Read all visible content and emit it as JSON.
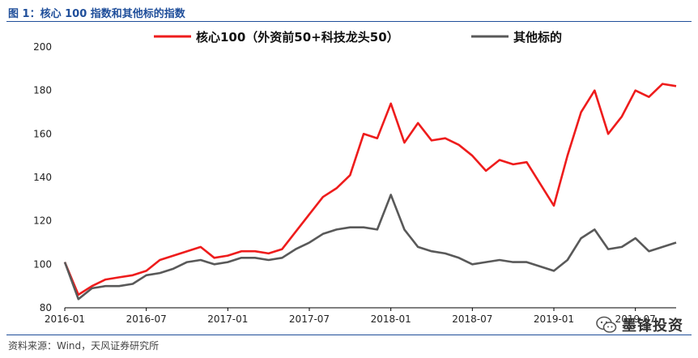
{
  "figure_title": "图 1：核心 100 指数和其他标的指数",
  "source": "资料来源：Wind，天风证券研究所",
  "watermark": "墨锋投资",
  "watermark_icon": "wechat-icon",
  "colors": {
    "series1": "#ee1c1c",
    "series2": "#595959",
    "accent": "#1f4e9a"
  },
  "chart_data": {
    "type": "line",
    "title": "",
    "xlabel": "",
    "ylabel": "",
    "ylim": [
      80,
      200
    ],
    "yticks": [
      80,
      100,
      120,
      140,
      160,
      180,
      200
    ],
    "xlim": [
      "2016-01",
      "2019-10"
    ],
    "xticks": [
      "2016-01",
      "2016-07",
      "2017-01",
      "2017-07",
      "2018-01",
      "2018-07",
      "2019-01",
      "2019-07"
    ],
    "grid": false,
    "legend": "top",
    "series": [
      {
        "name": "核心100（外资前50+科技龙头50）",
        "x": [
          "2016-01",
          "2016-02",
          "2016-03",
          "2016-04",
          "2016-05",
          "2016-06",
          "2016-07",
          "2016-08",
          "2016-09",
          "2016-10",
          "2016-11",
          "2016-12",
          "2017-01",
          "2017-02",
          "2017-03",
          "2017-04",
          "2017-05",
          "2017-06",
          "2017-07",
          "2017-08",
          "2017-09",
          "2017-10",
          "2017-11",
          "2017-12",
          "2018-01",
          "2018-02",
          "2018-03",
          "2018-04",
          "2018-05",
          "2018-06",
          "2018-07",
          "2018-08",
          "2018-09",
          "2018-10",
          "2018-11",
          "2018-12",
          "2019-01",
          "2019-02",
          "2019-03",
          "2019-04",
          "2019-05",
          "2019-06",
          "2019-07",
          "2019-08",
          "2019-09",
          "2019-10"
        ],
        "values": [
          101,
          86,
          90,
          93,
          94,
          95,
          97,
          102,
          104,
          106,
          108,
          103,
          104,
          106,
          106,
          105,
          107,
          115,
          123,
          131,
          135,
          141,
          160,
          158,
          174,
          156,
          165,
          157,
          158,
          155,
          150,
          143,
          148,
          146,
          147,
          137,
          127,
          150,
          170,
          180,
          160,
          168,
          180,
          177,
          183,
          182
        ]
      },
      {
        "name": "其他标的",
        "x": [
          "2016-01",
          "2016-02",
          "2016-03",
          "2016-04",
          "2016-05",
          "2016-06",
          "2016-07",
          "2016-08",
          "2016-09",
          "2016-10",
          "2016-11",
          "2016-12",
          "2017-01",
          "2017-02",
          "2017-03",
          "2017-04",
          "2017-05",
          "2017-06",
          "2017-07",
          "2017-08",
          "2017-09",
          "2017-10",
          "2017-11",
          "2017-12",
          "2018-01",
          "2018-02",
          "2018-03",
          "2018-04",
          "2018-05",
          "2018-06",
          "2018-07",
          "2018-08",
          "2018-09",
          "2018-10",
          "2018-11",
          "2018-12",
          "2019-01",
          "2019-02",
          "2019-03",
          "2019-04",
          "2019-05",
          "2019-06",
          "2019-07",
          "2019-08",
          "2019-09",
          "2019-10"
        ],
        "values": [
          101,
          84,
          89,
          90,
          90,
          91,
          95,
          96,
          98,
          101,
          102,
          100,
          101,
          103,
          103,
          102,
          103,
          107,
          110,
          114,
          116,
          117,
          117,
          116,
          132,
          116,
          108,
          106,
          105,
          103,
          100,
          101,
          102,
          101,
          101,
          99,
          97,
          102,
          112,
          116,
          107,
          108,
          112,
          106,
          108,
          110
        ]
      }
    ]
  }
}
